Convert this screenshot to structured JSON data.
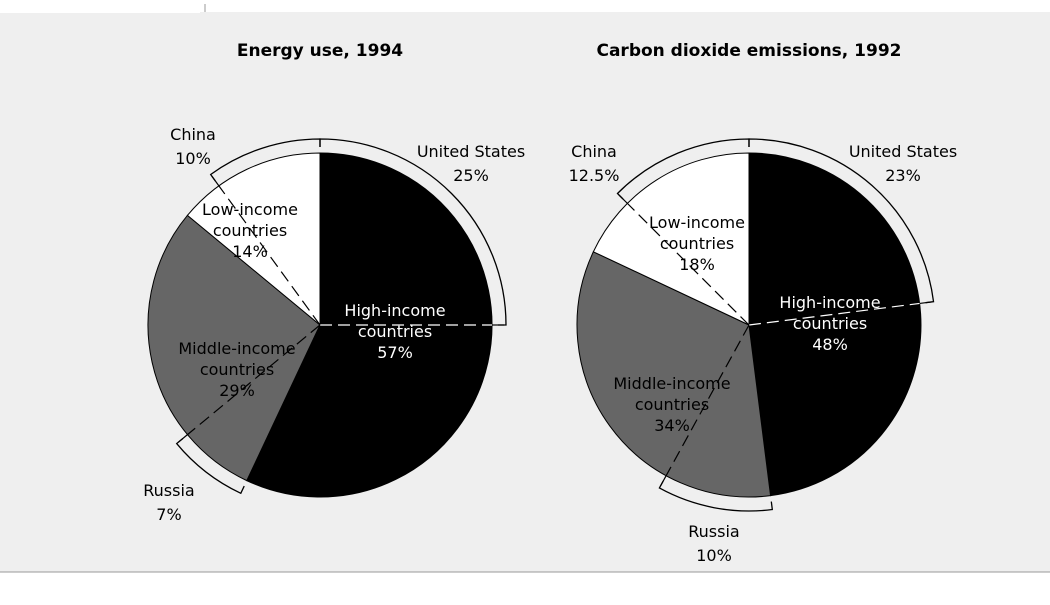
{
  "chart_data": [
    {
      "type": "pie",
      "title": "Energy use, 1994",
      "slices": [
        {
          "label": "High-income countries",
          "value": 57,
          "value_label": "57%",
          "color": "#000000"
        },
        {
          "label": "Middle-income countries",
          "value": 29,
          "value_label": "29%",
          "color": "#666666"
        },
        {
          "label": "Low-income countries",
          "value": 14,
          "value_label": "14%",
          "color": "#ffffff"
        }
      ],
      "sub_shares": [
        {
          "name": "United States",
          "value": 25,
          "value_label": "25%",
          "within": "High-income countries"
        },
        {
          "name": "China",
          "value": 10,
          "value_label": "10%",
          "within": "Low-income countries"
        },
        {
          "name": "Russia",
          "value": 7,
          "value_label": "7%",
          "within": "Middle-income countries"
        }
      ]
    },
    {
      "type": "pie",
      "title": "Carbon dioxide emissions, 1992",
      "slices": [
        {
          "label": "High-income countries",
          "value": 48,
          "value_label": "48%",
          "color": "#000000"
        },
        {
          "label": "Middle-income countries",
          "value": 34,
          "value_label": "34%",
          "color": "#666666"
        },
        {
          "label": "Low-income countries",
          "value": 18,
          "value_label": "18%",
          "color": "#ffffff"
        }
      ],
      "sub_shares": [
        {
          "name": "United States",
          "value": 23,
          "value_label": "23%",
          "within": "High-income countries"
        },
        {
          "name": "China",
          "value": 12.5,
          "value_label": "12.5%",
          "within": "Low-income countries"
        },
        {
          "name": "Russia",
          "value": 10,
          "value_label": "10%",
          "within": "Middle-income countries"
        }
      ]
    }
  ],
  "colors": {
    "panel_background": "#efefef",
    "high_income": "#000000",
    "middle_income": "#666666",
    "low_income": "#ffffff",
    "rule": "#999999"
  }
}
